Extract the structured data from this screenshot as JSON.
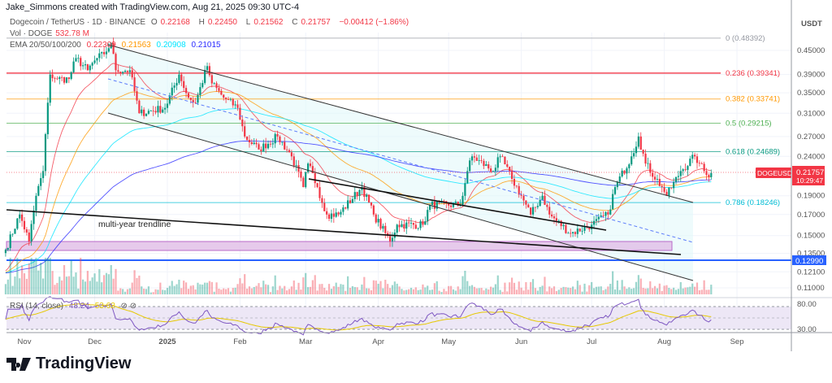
{
  "credit": "Jake_Simmons created with TradingView.com, Aug 21, 2025 09:30 UTC-4",
  "symbol": {
    "name": "Dogecoin / TetherUS · 1D · BINANCE",
    "o_label": "O",
    "o": "0.22168",
    "h_label": "H",
    "h": "0.22450",
    "l_label": "L",
    "l": "0.21562",
    "c_label": "C",
    "c": "0.21757",
    "change": "−0.00412 (−1.86%)"
  },
  "volume": {
    "label": "Vol · DOGE",
    "value": "532.78 M"
  },
  "ema": {
    "label": "EMA 20/50/100/200",
    "v20": "0.22309",
    "v50": "0.21563",
    "v100": "0.20908",
    "v200": "0.21015",
    "colors": [
      "#f23645",
      "#ff9800",
      "#00e5ff",
      "#2929ff"
    ]
  },
  "rsi": {
    "label": "RSI (14, close)",
    "value": "48.24",
    "ma": "53.62",
    "upper": "80.00",
    "lower": "30.00"
  },
  "currency": "USDT",
  "price_tag": {
    "symbol": "DOGEUSDT",
    "price": "0.21757",
    "countdown": "10:29:47"
  },
  "support_tag": "0.12990",
  "annotation": "multi-year trendline",
  "brand": "TradingView",
  "chart_data": {
    "type": "candlestick",
    "scale": "log",
    "grid": true,
    "y_ticks": [
      "0.45000",
      "0.39000",
      "0.35000",
      "0.31000",
      "0.27000",
      "0.24000",
      "0.19000",
      "0.17000",
      "0.15000",
      "0.13500",
      "0.12100",
      "0.11000"
    ],
    "x_ticks": [
      "Nov",
      "Dec",
      "2025",
      "Feb",
      "Mar",
      "Apr",
      "May",
      "Jun",
      "Jul",
      "Aug",
      "Sep"
    ],
    "fib_levels": [
      {
        "label": "0 (0.48392)",
        "value": 0.48392,
        "color": "#9598a1"
      },
      {
        "label": "0.236 (0.39341)",
        "value": 0.39341,
        "color": "#f23645"
      },
      {
        "label": "0.382 (0.33741)",
        "value": 0.33741,
        "color": "#ff9800"
      },
      {
        "label": "0.5 (0.29215)",
        "value": 0.29215,
        "color": "#4caf50"
      },
      {
        "label": "0.618 (0.24689)",
        "value": 0.24689,
        "color": "#089981"
      },
      {
        "label": "0.786 (0.18246)",
        "value": 0.18246,
        "color": "#00bcd4"
      }
    ],
    "support_level": 0.1299,
    "closes": [
      [
        "2024-10-24",
        0.138
      ],
      [
        "2024-10-30",
        0.17
      ],
      [
        "2024-11-03",
        0.145
      ],
      [
        "2024-11-06",
        0.19
      ],
      [
        "2024-11-09",
        0.22
      ],
      [
        "2024-11-11",
        0.33
      ],
      [
        "2024-11-12",
        0.39
      ],
      [
        "2024-11-15",
        0.38
      ],
      [
        "2024-11-20",
        0.38
      ],
      [
        "2024-11-23",
        0.43
      ],
      [
        "2024-11-28",
        0.4
      ],
      [
        "2024-12-02",
        0.43
      ],
      [
        "2024-12-05",
        0.44
      ],
      [
        "2024-12-08",
        0.47
      ],
      [
        "2024-12-10",
        0.4
      ],
      [
        "2024-12-16",
        0.4
      ],
      [
        "2024-12-20",
        0.31
      ],
      [
        "2024-12-31",
        0.32
      ],
      [
        "2025-01-06",
        0.39
      ],
      [
        "2025-01-10",
        0.34
      ],
      [
        "2025-01-13",
        0.33
      ],
      [
        "2025-01-18",
        0.41
      ],
      [
        "2025-01-20",
        0.37
      ],
      [
        "2025-01-25",
        0.34
      ],
      [
        "2025-01-31",
        0.32
      ],
      [
        "2025-02-03",
        0.27
      ],
      [
        "2025-02-09",
        0.25
      ],
      [
        "2025-02-17",
        0.27
      ],
      [
        "2025-02-23",
        0.24
      ],
      [
        "2025-02-28",
        0.2
      ],
      [
        "2025-03-02",
        0.23
      ],
      [
        "2025-03-06",
        0.2
      ],
      [
        "2025-03-10",
        0.17
      ],
      [
        "2025-03-15",
        0.17
      ],
      [
        "2025-03-25",
        0.2
      ],
      [
        "2025-03-30",
        0.17
      ],
      [
        "2025-04-06",
        0.145
      ],
      [
        "2025-04-09",
        0.16
      ],
      [
        "2025-04-20",
        0.16
      ],
      [
        "2025-04-23",
        0.18
      ],
      [
        "2025-05-06",
        0.18
      ],
      [
        "2025-05-09",
        0.22
      ],
      [
        "2025-05-11",
        0.24
      ],
      [
        "2025-05-20",
        0.22
      ],
      [
        "2025-05-23",
        0.24
      ],
      [
        "2025-05-28",
        0.21
      ],
      [
        "2025-06-01",
        0.19
      ],
      [
        "2025-06-05",
        0.17
      ],
      [
        "2025-06-10",
        0.19
      ],
      [
        "2025-06-13",
        0.17
      ],
      [
        "2025-06-22",
        0.152
      ],
      [
        "2025-07-01",
        0.16
      ],
      [
        "2025-07-08",
        0.17
      ],
      [
        "2025-07-11",
        0.2
      ],
      [
        "2025-07-18",
        0.24
      ],
      [
        "2025-07-21",
        0.27
      ],
      [
        "2025-07-24",
        0.23
      ],
      [
        "2025-07-31",
        0.2
      ],
      [
        "2025-08-02",
        0.19
      ],
      [
        "2025-08-08",
        0.22
      ],
      [
        "2025-08-14",
        0.24
      ],
      [
        "2025-08-16",
        0.23
      ],
      [
        "2025-08-19",
        0.215
      ],
      [
        "2025-08-21",
        0.21757
      ]
    ]
  }
}
